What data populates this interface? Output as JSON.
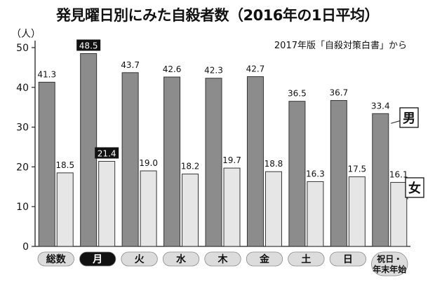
{
  "chart_data": {
    "type": "bar",
    "title": "発見曜日別にみた自殺者数（2016年の1日平均）",
    "source": "2017年版「自殺対策白書」から",
    "ylabel": "（人）",
    "ylim": [
      0,
      50
    ],
    "yticks": [
      "0",
      "10",
      "20",
      "30",
      "40",
      "50"
    ],
    "categories": [
      "総数",
      "月",
      "火",
      "水",
      "木",
      "金",
      "土",
      "日",
      "祝日・年末年始"
    ],
    "category_labels": [
      [
        "総数"
      ],
      [
        "月"
      ],
      [
        "火"
      ],
      [
        "水"
      ],
      [
        "木"
      ],
      [
        "金"
      ],
      [
        "土"
      ],
      [
        "日"
      ],
      [
        "祝日・",
        "年末年始"
      ]
    ],
    "highlight_category": "月",
    "series": [
      {
        "name": "男",
        "values": [
          41.3,
          48.5,
          43.7,
          42.6,
          42.3,
          42.7,
          36.5,
          36.7,
          33.4
        ],
        "labels": [
          "41.3",
          "48.5",
          "43.7",
          "42.6",
          "42.3",
          "42.7",
          "36.5",
          "36.7",
          "33.4"
        ],
        "color": "#8c8c8c"
      },
      {
        "name": "女",
        "values": [
          18.5,
          21.4,
          19.0,
          18.2,
          19.7,
          18.8,
          16.3,
          17.5,
          16.1
        ],
        "labels": [
          "18.5",
          "21.4",
          "19.0",
          "18.2",
          "19.7",
          "18.8",
          "16.3",
          "17.5",
          "16.1"
        ],
        "color": "#e6e6e6"
      }
    ],
    "grid": false,
    "legend": "direct labels at right"
  }
}
